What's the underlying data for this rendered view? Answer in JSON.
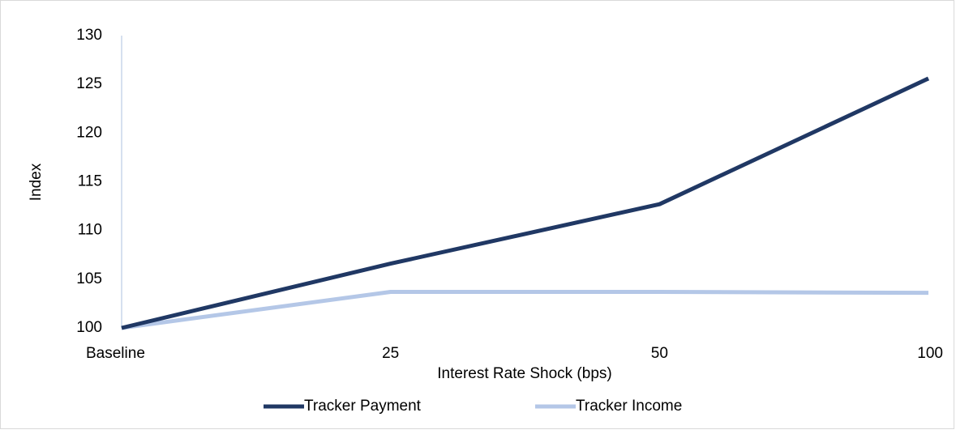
{
  "chart_data": {
    "type": "line",
    "x_label": "Interest Rate Shock (bps)",
    "y_label": "Index",
    "categories": [
      "Baseline",
      "25",
      "50",
      "100"
    ],
    "series": [
      {
        "name": "Tracker Payment",
        "color": "#203864",
        "values": [
          100,
          106.6,
          112.7,
          125.6
        ]
      },
      {
        "name": "Tracker Income",
        "color": "#b4c7e7",
        "values": [
          100,
          103.7,
          103.7,
          103.6
        ]
      }
    ],
    "ylim": [
      100,
      130
    ],
    "yticks": [
      100,
      105,
      110,
      115,
      120,
      125,
      130
    ],
    "grid": false,
    "legend": "bottom"
  }
}
